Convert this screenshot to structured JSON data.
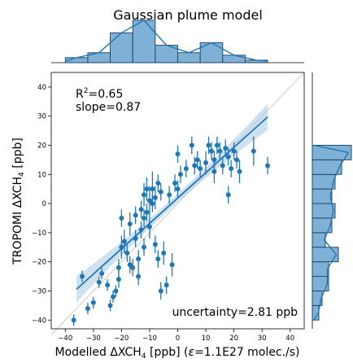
{
  "chart_data": {
    "type": "scatter",
    "title": "Gaussian plume model",
    "xlabel": "Modelled ΔXCH",
    "xlabel_sub": "4",
    "xlabel_rest": " [ppb] (",
    "xlabel_eps": "ε",
    "xlabel_eps_rest": "=1.1E27 molec./s)",
    "ylabel": "TROPOMI ΔXCH",
    "ylabel_sub": "4",
    "ylabel_rest": " [ppb]",
    "xlim": [
      -45,
      45
    ],
    "ylim": [
      -43,
      45
    ],
    "xticks": [
      -40,
      -30,
      -20,
      -10,
      0,
      10,
      20,
      30,
      40
    ],
    "yticks": [
      -40,
      -30,
      -20,
      -10,
      0,
      10,
      20,
      30,
      40
    ],
    "annotations": {
      "r2_label": "R",
      "r2_sup": "2",
      "r2_value": "=0.65",
      "slope": "slope=0.87",
      "uncertainty": "uncertainty=2.81 ppb"
    },
    "regression": {
      "slope": 0.87,
      "x_range": [
        -36,
        32
      ],
      "intercept": 1.9
    },
    "identity_line": true,
    "colors": {
      "points": "#1f77b4",
      "band": "#a6c8e5",
      "hist": "#7fb1d6",
      "identity": "#d3d3d3"
    },
    "points": [
      {
        "x": -37,
        "y": -40,
        "ye": 2
      },
      {
        "x": -34,
        "y": -25,
        "ye": 2
      },
      {
        "x": -32,
        "y": -36,
        "ye": 2
      },
      {
        "x": -30,
        "y": -34,
        "ye": 2
      },
      {
        "x": -28,
        "y": -27,
        "ye": 2
      },
      {
        "x": -27,
        "y": -24,
        "ye": 2
      },
      {
        "x": -25,
        "y": -28,
        "ye": 2
      },
      {
        "x": -24,
        "y": -35,
        "ye": 2
      },
      {
        "x": -23,
        "y": -32,
        "ye": 2
      },
      {
        "x": -22,
        "y": -30,
        "ye": 2
      },
      {
        "x": -21,
        "y": -26,
        "ye": 3
      },
      {
        "x": -21,
        "y": -22,
        "ye": 3
      },
      {
        "x": -20,
        "y": -15,
        "ye": 4
      },
      {
        "x": -20,
        "y": -5,
        "ye": 3
      },
      {
        "x": -19,
        "y": -13,
        "ye": 4
      },
      {
        "x": -18,
        "y": -17,
        "ye": 3
      },
      {
        "x": -17,
        "y": -7,
        "ye": 4
      },
      {
        "x": -17,
        "y": -21,
        "ye": 3
      },
      {
        "x": -16,
        "y": -22,
        "ye": 3
      },
      {
        "x": -15,
        "y": -12,
        "ye": 3
      },
      {
        "x": -15,
        "y": -4,
        "ye": 3
      },
      {
        "x": -14,
        "y": -19,
        "ye": 3
      },
      {
        "x": -14,
        "y": -25,
        "ye": 3
      },
      {
        "x": -13,
        "y": -2,
        "ye": 3
      },
      {
        "x": -13,
        "y": -9,
        "ye": 3
      },
      {
        "x": -12,
        "y": 3,
        "ye": 4
      },
      {
        "x": -12,
        "y": -5,
        "ye": 3
      },
      {
        "x": -12,
        "y": -15,
        "ye": 3
      },
      {
        "x": -11,
        "y": 5,
        "ye": 4
      },
      {
        "x": -11,
        "y": -3,
        "ye": 3
      },
      {
        "x": -10,
        "y": 1,
        "ye": 5
      },
      {
        "x": -10,
        "y": -8,
        "ye": 4
      },
      {
        "x": -9,
        "y": 5,
        "ye": 6
      },
      {
        "x": -9,
        "y": 0,
        "ye": 3
      },
      {
        "x": -8,
        "y": 2,
        "ye": 4
      },
      {
        "x": -8,
        "y": -14,
        "ye": 3
      },
      {
        "x": -7,
        "y": 7,
        "ye": 3
      },
      {
        "x": -7,
        "y": -19,
        "ye": 3
      },
      {
        "x": -6,
        "y": 4,
        "ye": 3
      },
      {
        "x": -6,
        "y": -30,
        "ye": 3
      },
      {
        "x": -5,
        "y": -17,
        "ye": 4
      },
      {
        "x": -4,
        "y": -28,
        "ye": 3
      },
      {
        "x": -3,
        "y": 3,
        "ye": 3
      },
      {
        "x": -2,
        "y": -21,
        "ye": 4
      },
      {
        "x": -1,
        "y": 7,
        "ye": 3
      },
      {
        "x": 0,
        "y": 17,
        "ye": 3
      },
      {
        "x": 0,
        "y": 5,
        "ye": 3
      },
      {
        "x": 1,
        "y": 10,
        "ye": 3
      },
      {
        "x": 3,
        "y": 12,
        "ye": 3
      },
      {
        "x": 5,
        "y": 20,
        "ye": 3
      },
      {
        "x": 6,
        "y": 13,
        "ye": 3
      },
      {
        "x": 7,
        "y": 15,
        "ye": 3
      },
      {
        "x": 8,
        "y": 12,
        "ye": 3
      },
      {
        "x": 10,
        "y": 14,
        "ye": 4
      },
      {
        "x": 11,
        "y": 20,
        "ye": 3
      },
      {
        "x": 12,
        "y": 18,
        "ye": 3
      },
      {
        "x": 13,
        "y": 15,
        "ye": 3
      },
      {
        "x": 13,
        "y": 11,
        "ye": 4
      },
      {
        "x": 14,
        "y": 20,
        "ye": 3
      },
      {
        "x": 15,
        "y": 18,
        "ye": 3
      },
      {
        "x": 16,
        "y": 13,
        "ye": 3
      },
      {
        "x": 17,
        "y": 19,
        "ye": 3
      },
      {
        "x": 18,
        "y": 16,
        "ye": 3
      },
      {
        "x": 18,
        "y": 3,
        "ye": 3
      },
      {
        "x": 19,
        "y": 12,
        "ye": 3
      },
      {
        "x": 20,
        "y": 18,
        "ye": 3
      },
      {
        "x": 21,
        "y": 15,
        "ye": 3
      },
      {
        "x": 22,
        "y": 11,
        "ye": 4
      },
      {
        "x": 27,
        "y": 18,
        "ye": 5
      },
      {
        "x": 32,
        "y": 13,
        "ye": 3
      }
    ],
    "hist_x": {
      "bins": [
        -40,
        -32,
        -24,
        -16,
        -8,
        0,
        8,
        16,
        24,
        32
      ],
      "counts": [
        2,
        4,
        12,
        17,
        7,
        4,
        8,
        3,
        1
      ]
    },
    "hist_y": {
      "bins": [
        -40,
        -35,
        -30,
        -25,
        -20,
        -15,
        -10,
        -5,
        0,
        5,
        10,
        15,
        20
      ],
      "counts": [
        2,
        3,
        5,
        5,
        8,
        4,
        6,
        7,
        6,
        7,
        9,
        12
      ]
    }
  }
}
